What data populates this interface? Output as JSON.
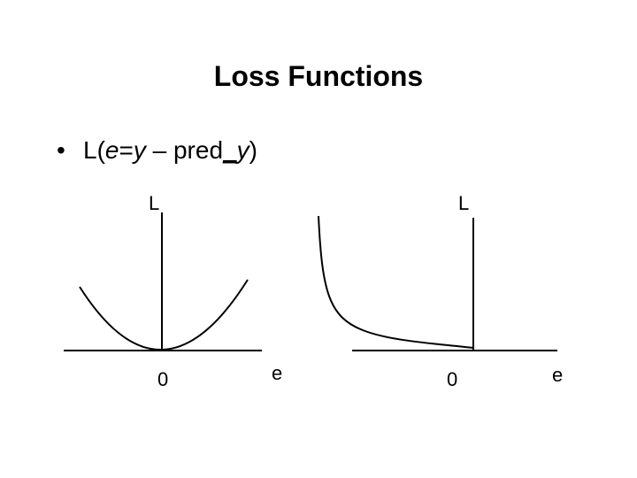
{
  "title": "Loss Functions",
  "bullet": {
    "marker": "•",
    "parts": [
      "L(",
      "e",
      "=",
      "y",
      " – pred",
      "_",
      "y",
      ")"
    ]
  },
  "plot_left": {
    "y_axis_label": "L",
    "x_axis_label": "e",
    "origin_label": "0"
  },
  "plot_right": {
    "y_axis_label": "L",
    "x_axis_label": "e",
    "origin_label": "0"
  }
}
